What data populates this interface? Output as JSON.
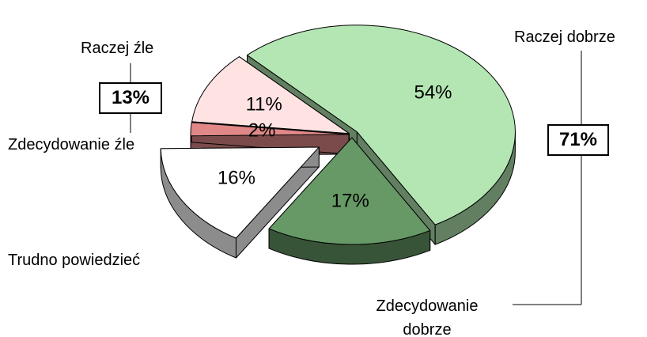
{
  "chart_data": {
    "type": "pie",
    "categories": [
      "Raczej dobrze",
      "Zdecydowanie dobrze",
      "Trudno powiedzieć",
      "Zdecydowanie źle",
      "Raczej źle"
    ],
    "values": [
      54,
      17,
      16,
      2,
      11
    ],
    "value_labels": [
      "54%",
      "17%",
      "16%",
      "2%",
      "11%"
    ],
    "colors": [
      "#b3e6b3",
      "#669966",
      "#ffffff",
      "#e08888",
      "#ffe3e3"
    ],
    "groups": [
      {
        "value": 71,
        "label": "71%"
      },
      {
        "value": 13,
        "label": "13%"
      }
    ]
  }
}
